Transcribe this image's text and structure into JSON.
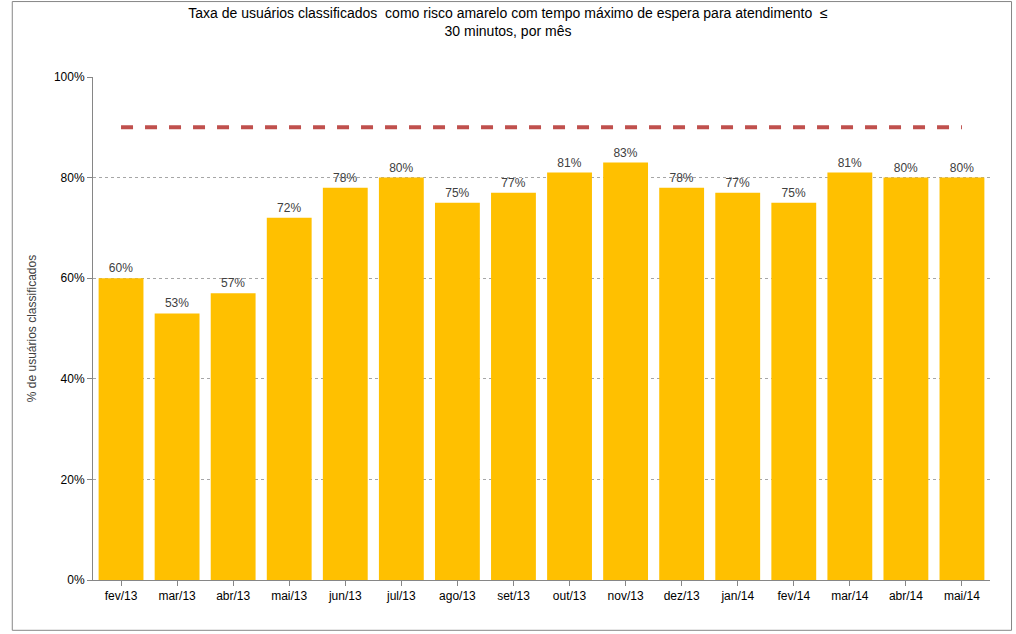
{
  "chart_data": {
    "type": "bar",
    "title": "Taxa de usuários classificados  como risco amarelo com tempo máximo de espera para atendimento  ≤\n30 minutos, por mês",
    "y_label": "% de usuários classificados",
    "categories": [
      "fev/13",
      "mar/13",
      "abr/13",
      "mai/13",
      "jun/13",
      "jul/13",
      "ago/13",
      "set/13",
      "out/13",
      "nov/13",
      "dez/13",
      "jan/14",
      "fev/14",
      "mar/14",
      "abr/14",
      "mai/14"
    ],
    "values": [
      60,
      53,
      57,
      72,
      78,
      80,
      75,
      77,
      81,
      83,
      78,
      77,
      75,
      81,
      80,
      80
    ],
    "value_labels": [
      "60%",
      "53%",
      "57%",
      "72%",
      "78%",
      "80%",
      "75%",
      "77%",
      "81%",
      "83%",
      "78%",
      "77%",
      "75%",
      "81%",
      "80%",
      "80%"
    ],
    "color": "#ffc000",
    "target": 90,
    "target_color": "#c0504d",
    "target_line_style": "dash",
    "ylim": [
      0,
      100
    ],
    "yticks": [
      {
        "value": 0,
        "label": "0%"
      },
      {
        "value": 20,
        "label": "20%"
      },
      {
        "value": 40,
        "label": "40%"
      },
      {
        "value": 60,
        "label": "60%"
      },
      {
        "value": 80,
        "label": "80%"
      },
      {
        "value": 100,
        "label": "100%"
      }
    ],
    "grid": true,
    "data_labels": true
  }
}
